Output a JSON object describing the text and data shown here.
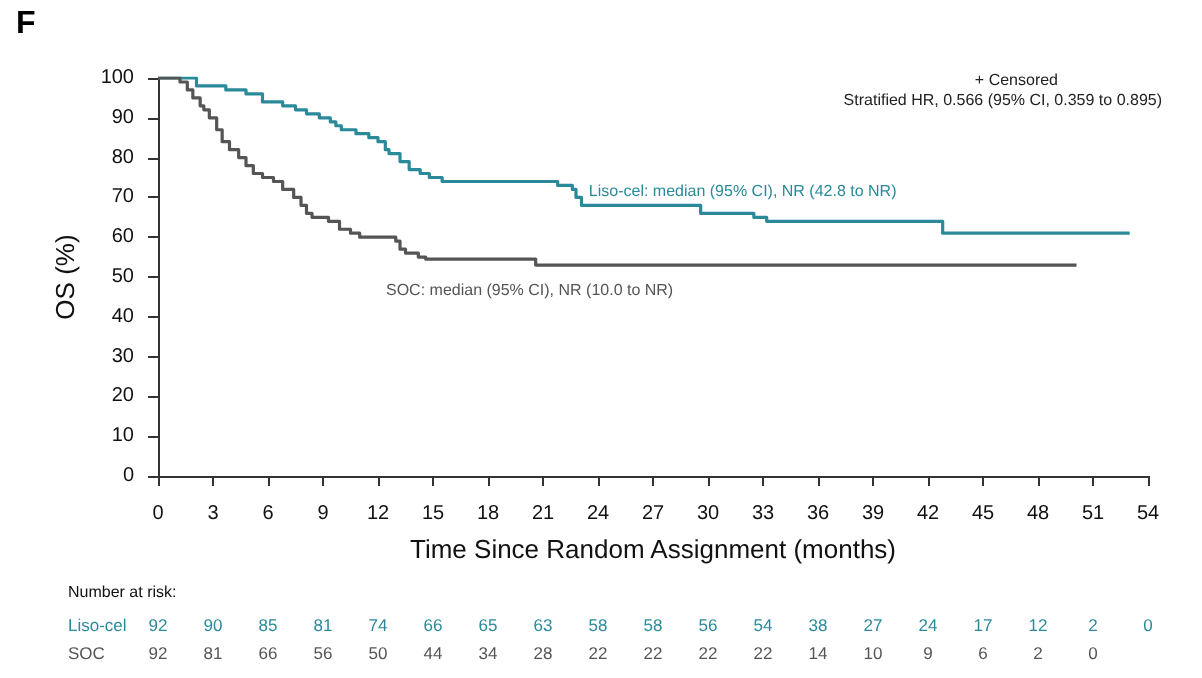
{
  "chart_data": {
    "type": "step",
    "xlabel": "Time Since Random Assignment (months)",
    "ylabel": "OS (%)",
    "xlim": [
      0,
      54
    ],
    "xticks": [
      0,
      3,
      6,
      9,
      12,
      15,
      18,
      21,
      24,
      27,
      30,
      33,
      36,
      39,
      42,
      45,
      48,
      51,
      54
    ],
    "ylim": [
      0,
      100
    ],
    "yticks": [
      0,
      10,
      20,
      30,
      40,
      50,
      60,
      70,
      80,
      90,
      100
    ],
    "grid": false,
    "marker": "none",
    "line_style": "solid",
    "series": [
      {
        "color": "#2a8a9a",
        "x": [
          0,
          2.1,
          3.7,
          4.8,
          5.7,
          6.8,
          7.5,
          8.1,
          8.8,
          9.4,
          9.7,
          10,
          10.8,
          11.5,
          12,
          12.4,
          12.6,
          13.2,
          13.7,
          14.3,
          14.8,
          15.5,
          21.8,
          22.6,
          22.8,
          23.1,
          29.6,
          32.5,
          33.2,
          42.8,
          53
        ],
        "values": [
          100,
          98,
          97,
          96,
          94,
          93,
          92,
          91,
          90,
          89,
          88,
          87,
          86,
          85,
          84,
          82,
          81,
          79,
          77,
          76,
          75,
          74,
          73,
          72,
          70,
          68,
          66,
          65,
          64,
          61,
          61
        ]
      },
      {
        "color": "#555555",
        "x": [
          0,
          1.2,
          1.6,
          1.9,
          2.3,
          2.5,
          2.8,
          3.2,
          3.5,
          3.9,
          4.4,
          4.8,
          5.2,
          5.7,
          6.3,
          6.8,
          7.4,
          7.8,
          8.1,
          8.4,
          9.3,
          9.9,
          10.5,
          11,
          12.97,
          13.2,
          13.5,
          14.2,
          14.6,
          20.6,
          50.1
        ],
        "values": [
          100,
          99,
          97,
          95,
          93,
          92,
          90,
          87,
          84,
          82,
          80,
          78,
          76,
          75,
          74,
          72,
          70,
          68,
          66,
          65,
          64,
          62,
          61,
          60,
          59,
          57,
          56,
          55,
          54.5,
          53,
          53
        ]
      }
    ],
    "annotations": [
      "F",
      "+ Censored",
      "Stratified HR, 0.566 (95% CI, 0.359 to 0.895)",
      "SOC: median (95% CI), NR (10.0 to NR)",
      {
        "text": "Liso-cel: median (95% CI), NR (42.8 to NR)",
        "x": 23.5,
        "y": 71.5
      },
      "Number at risk:",
      "Liso-cel",
      "92 90 85 81 74 66 65 63 58 58 56 54 38 27 24 17 12 2 0",
      "SOC",
      "92 81 66 56 50 44 34 28 22 22 22 22 14 10 9 6 2 0"
    ]
  }
}
